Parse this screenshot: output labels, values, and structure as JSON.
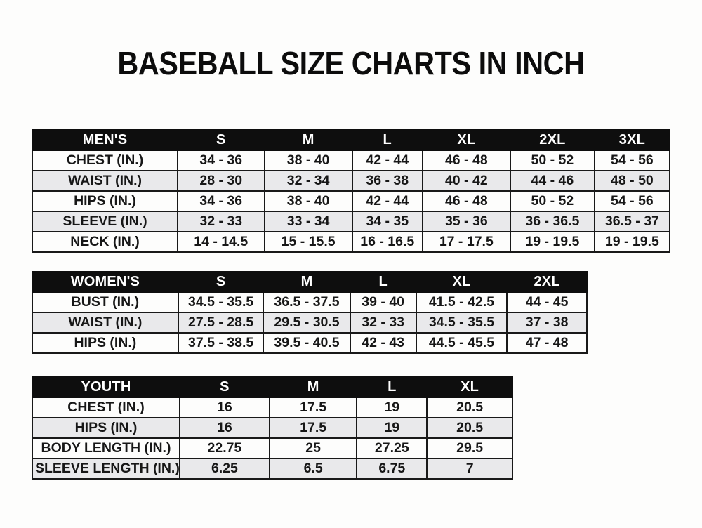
{
  "page": {
    "title": "BASEBALL SIZE CHARTS IN INCH"
  },
  "colors": {
    "header_bg": "#0e0e0e",
    "header_text": "#ffffff",
    "row_alt_bg": "#e9e9eb",
    "border": "#191919",
    "page_bg": "#fdfdfc"
  },
  "tables": [
    {
      "name": "mens",
      "header": [
        "MEN'S",
        "S",
        "M",
        "L",
        "XL",
        "2XL",
        "3XL"
      ],
      "rows": [
        [
          "CHEST (IN.)",
          "34 - 36",
          "38 - 40",
          "42 - 44",
          "46 - 48",
          "50 - 52",
          "54 - 56"
        ],
        [
          "WAIST (IN.)",
          "28 - 30",
          "32 - 34",
          "36 - 38",
          "40 - 42",
          "44 - 46",
          "48 - 50"
        ],
        [
          "HIPS (IN.)",
          "34 - 36",
          "38 - 40",
          "42 - 44",
          "46 - 48",
          "50 - 52",
          "54 - 56"
        ],
        [
          "SLEEVE (IN.)",
          "32 - 33",
          "33 - 34",
          "34 - 35",
          "35 - 36",
          "36 - 36.5",
          "36.5 - 37"
        ],
        [
          "NECK (IN.)",
          "14 - 14.5",
          "15 - 15.5",
          "16 - 16.5",
          "17 - 17.5",
          "19 - 19.5",
          "19 - 19.5"
        ]
      ]
    },
    {
      "name": "womens",
      "header": [
        "WOMEN'S",
        "S",
        "M",
        "L",
        "XL",
        "2XL"
      ],
      "rows": [
        [
          "BUST (IN.)",
          "34.5 - 35.5",
          "36.5 - 37.5",
          "39 - 40",
          "41.5 - 42.5",
          "44 - 45"
        ],
        [
          "WAIST (IN.)",
          "27.5 - 28.5",
          "29.5 - 30.5",
          "32 - 33",
          "34.5 - 35.5",
          "37 - 38"
        ],
        [
          "HIPS (IN.)",
          "37.5 - 38.5",
          "39.5 - 40.5",
          "42 - 43",
          "44.5 - 45.5",
          "47 - 48"
        ]
      ]
    },
    {
      "name": "youth",
      "header": [
        "YOUTH",
        "S",
        "M",
        "L",
        "XL"
      ],
      "rows": [
        [
          "CHEST (IN.)",
          "16",
          "17.5",
          "19",
          "20.5"
        ],
        [
          "HIPS (IN.)",
          "16",
          "17.5",
          "19",
          "20.5"
        ],
        [
          "BODY LENGTH (IN.)",
          "22.75",
          "25",
          "27.25",
          "29.5"
        ],
        [
          "SLEEVE LENGTH (IN.)",
          "6.25",
          "6.5",
          "6.75",
          "7"
        ]
      ]
    }
  ]
}
